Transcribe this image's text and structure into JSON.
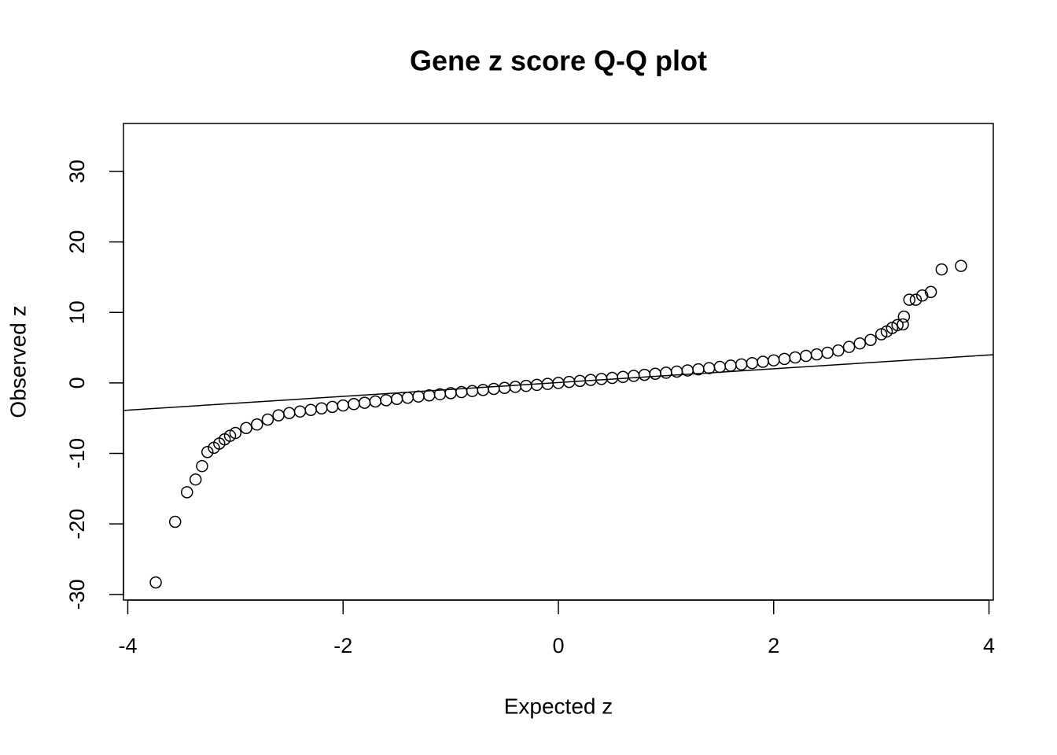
{
  "chart_data": {
    "type": "scatter",
    "title": "Gene z score Q-Q plot",
    "x_label": "Expected z",
    "y_label": "Observed z",
    "xlim": [
      -4.04,
      4.04
    ],
    "ylim": [
      -30.8,
      36.8
    ],
    "xticks": [
      -4,
      -2,
      0,
      2,
      4
    ],
    "yticks": [
      -30,
      -20,
      -10,
      0,
      10,
      20,
      30
    ],
    "grid": false,
    "color": "#000000",
    "x": [
      -3.74,
      -3.56,
      -3.45,
      -3.37,
      -3.31,
      -3.26,
      -3.2,
      -3.15,
      -3.1,
      -3.05,
      -3.0,
      -2.9,
      -2.8,
      -2.7,
      -2.6,
      -2.5,
      -2.4,
      -2.3,
      -2.2,
      -2.1,
      -2.0,
      -1.9,
      -1.8,
      -1.7,
      -1.6,
      -1.5,
      -1.4,
      -1.3,
      -1.2,
      -1.1,
      -1.0,
      -0.9,
      -0.8,
      -0.7,
      -0.6,
      -0.5,
      -0.4,
      -0.3,
      -0.2,
      -0.1,
      0,
      0.1,
      0.2,
      0.3,
      0.4,
      0.5,
      0.6,
      0.7,
      0.8,
      0.9,
      1.0,
      1.1,
      1.2,
      1.3,
      1.4,
      1.5,
      1.6,
      1.7,
      1.8,
      1.9,
      2.0,
      2.1,
      2.2,
      2.3,
      2.4,
      2.5,
      2.6,
      2.7,
      2.8,
      2.9,
      3.0,
      3.05,
      3.1,
      3.15,
      3.2,
      3.21,
      3.26,
      3.32,
      3.38,
      3.46,
      3.56,
      3.74
    ],
    "values": [
      -28.3,
      -19.7,
      -15.5,
      -13.7,
      -11.8,
      -9.8,
      -9.2,
      -8.6,
      -8.0,
      -7.5,
      -7.1,
      -6.4,
      -5.9,
      -5.2,
      -4.6,
      -4.28,
      -4.05,
      -3.83,
      -3.61,
      -3.4,
      -3.2,
      -3.0,
      -2.81,
      -2.63,
      -2.45,
      -2.27,
      -2.1,
      -1.93,
      -1.77,
      -1.61,
      -1.45,
      -1.3,
      -1.15,
      -1.0,
      -0.85,
      -0.71,
      -0.56,
      -0.42,
      -0.28,
      -0.14,
      0,
      0.14,
      0.28,
      0.42,
      0.56,
      0.71,
      0.85,
      1.0,
      1.15,
      1.3,
      1.45,
      1.61,
      1.77,
      1.93,
      2.1,
      2.27,
      2.45,
      2.63,
      2.81,
      3.0,
      3.2,
      3.4,
      3.61,
      3.83,
      4.05,
      4.28,
      4.6,
      5.1,
      5.6,
      6.1,
      6.9,
      7.3,
      7.8,
      8.2,
      8.3,
      9.4,
      11.8,
      11.8,
      12.4,
      12.9,
      16.1,
      16.6
    ],
    "reference_line": {
      "x": [
        -4.04,
        4.04
      ],
      "y": [
        -3.9,
        4.0
      ]
    }
  }
}
